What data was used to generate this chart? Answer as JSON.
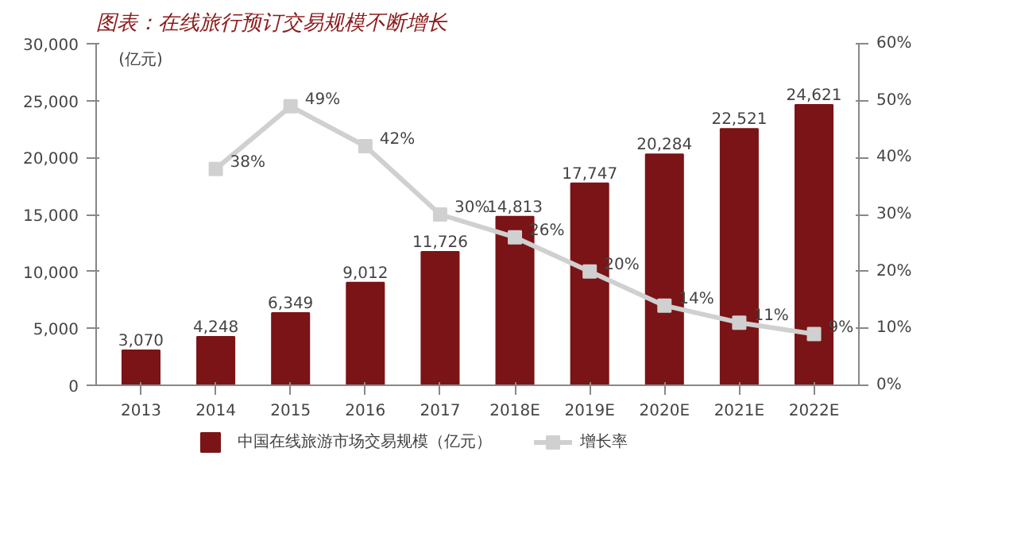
{
  "chart_data": {
    "type": "bar",
    "title": "图表：在线旅行预订交易规模不断增长",
    "ylabel": "(亿元)",
    "categories": [
      "2013",
      "2014",
      "2015",
      "2016",
      "2017",
      "2018E",
      "2019E",
      "2020E",
      "2021E",
      "2022E"
    ],
    "series": [
      {
        "name": "中国在线旅游市场交易规模（亿元）",
        "color": "#7b1416",
        "values": [
          3070,
          4248,
          6349,
          9012,
          11726,
          14813,
          17747,
          20284,
          22521,
          24621
        ],
        "value_labels": [
          "3,070",
          "4,248",
          "6,349",
          "9,012",
          "11,726",
          "14,813",
          "17,747",
          "20,284",
          "22,521",
          "24,621"
        ]
      },
      {
        "name": "增长率",
        "type": "line",
        "axis": "y2",
        "color": "#d0d0d0",
        "marker": "square",
        "values": [
          null,
          38,
          49,
          42,
          30,
          26,
          20,
          14,
          11,
          9
        ],
        "value_labels": [
          null,
          "38%",
          "49%",
          "42%",
          "30%",
          "26%",
          "20%",
          "14%",
          "11%",
          "9%"
        ]
      }
    ],
    "ylim": [
      0,
      30000
    ],
    "yticks": [
      {
        "value": 0,
        "label": "0"
      },
      {
        "value": 5000,
        "label": "5,000"
      },
      {
        "value": 10000,
        "label": "10,000"
      },
      {
        "value": 15000,
        "label": "15,000"
      },
      {
        "value": 20000,
        "label": "20,000"
      },
      {
        "value": 25000,
        "label": "25,000"
      },
      {
        "value": 30000,
        "label": "30,000"
      }
    ],
    "y2lim": [
      0,
      60
    ],
    "y2ticks": [
      {
        "value": 0,
        "label": "0%"
      },
      {
        "value": 10,
        "label": "10%"
      },
      {
        "value": 20,
        "label": "20%"
      },
      {
        "value": 30,
        "label": "30%"
      },
      {
        "value": 40,
        "label": "40%"
      },
      {
        "value": 50,
        "label": "50%"
      },
      {
        "value": 60,
        "label": "60%"
      }
    ],
    "grid": false,
    "legend": "bottom"
  }
}
